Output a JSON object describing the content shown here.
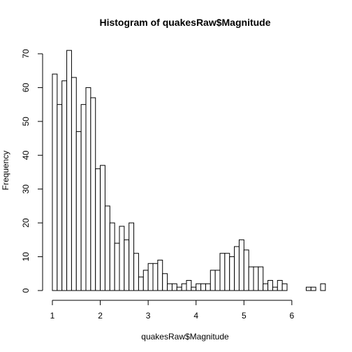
{
  "chart_data": {
    "type": "bar",
    "title": "Histogram of quakesRaw$Magnitude",
    "xlabel": "quakesRaw$Magnitude",
    "ylabel": "Frequency",
    "bin_width": 0.1,
    "bin_start": 1.0,
    "xlim": [
      1.0,
      6.6
    ],
    "ylim": [
      0,
      70
    ],
    "x_ticks": [
      1,
      2,
      3,
      4,
      5,
      6
    ],
    "y_ticks": [
      0,
      10,
      20,
      30,
      40,
      50,
      60,
      70
    ],
    "grid": false,
    "values": [
      64,
      55,
      62,
      71,
      63,
      47,
      55,
      60,
      57,
      36,
      37,
      25,
      20,
      14,
      19,
      15,
      20,
      11,
      4,
      6,
      8,
      8,
      9,
      5,
      2,
      2,
      1,
      2,
      3,
      1,
      2,
      2,
      2,
      6,
      6,
      11,
      11,
      10,
      13,
      15,
      12,
      7,
      7,
      7,
      2,
      3,
      1,
      3,
      2,
      0,
      0,
      0,
      0,
      1,
      1,
      0,
      2
    ],
    "colors": {
      "bar_fill": "#ffffff",
      "bar_stroke": "#000000"
    }
  }
}
